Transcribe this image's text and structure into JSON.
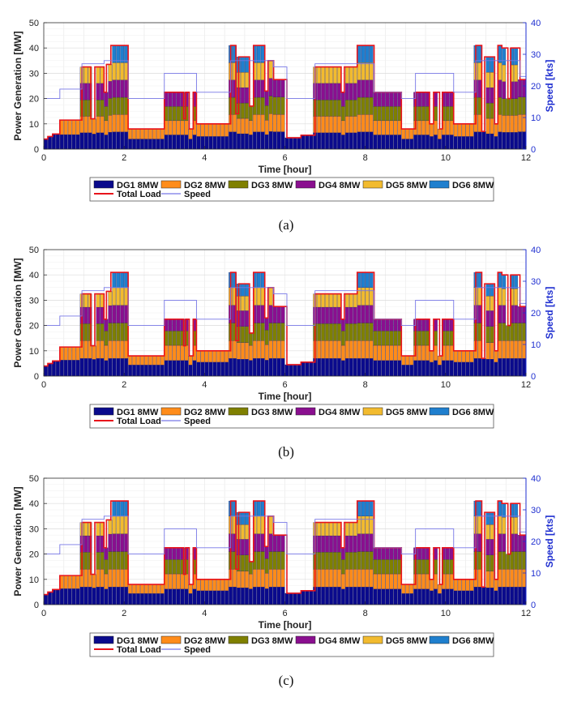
{
  "figure": {
    "panels": [
      {
        "caption": "(a)",
        "variant": "a"
      },
      {
        "caption": "(b)",
        "variant": "b"
      },
      {
        "caption": "(c)",
        "variant": "c"
      }
    ]
  },
  "chart_data": {
    "type": "bar",
    "stacked": true,
    "xlabel": "Time [hour]",
    "ylabel": "Power Generation [MW]",
    "y2label": "Speed [kts]",
    "xlim": [
      0,
      12
    ],
    "ylim": [
      0,
      50
    ],
    "y2lim": [
      0,
      40
    ],
    "xticks": [
      0,
      2,
      4,
      6,
      8,
      10,
      12
    ],
    "yticks": [
      0,
      10,
      20,
      30,
      40,
      50
    ],
    "y2ticks": [
      0,
      10,
      20,
      30,
      40
    ],
    "grid": true,
    "legend_position": "bottom",
    "legend": [
      "DG1 8MW",
      "DG2 8MW",
      "DG3 8MW",
      "DG4 8MW",
      "DG5 8MW",
      "DG6 8MW",
      "Total Load",
      "Speed"
    ],
    "colors": {
      "DG1": "#0a0a8c",
      "DG2": "#ff8c1a",
      "DG3": "#7f8000",
      "DG4": "#8a0f8f",
      "DG5": "#f2bb2f",
      "DG6": "#1f7fce",
      "load": "#e8141b",
      "speed": "#7777e6"
    },
    "load_profile": [
      {
        "t0": 0.0,
        "t1": 0.1,
        "load": 4
      },
      {
        "t0": 0.1,
        "t1": 0.22,
        "load": 5
      },
      {
        "t0": 0.22,
        "t1": 0.4,
        "load": 6
      },
      {
        "t0": 0.4,
        "t1": 0.95,
        "load": 11.5
      },
      {
        "t0": 0.95,
        "t1": 1.17,
        "load": 32.5
      },
      {
        "t0": 1.17,
        "t1": 1.27,
        "load": 12
      },
      {
        "t0": 1.27,
        "t1": 1.5,
        "load": 32.5
      },
      {
        "t0": 1.5,
        "t1": 1.56,
        "load": 22.5
      },
      {
        "t0": 1.56,
        "t1": 1.67,
        "load": 33.5
      },
      {
        "t0": 1.67,
        "t1": 2.1,
        "load": 41
      },
      {
        "t0": 2.1,
        "t1": 3.0,
        "load": 8
      },
      {
        "t0": 3.0,
        "t1": 3.48,
        "load": 22.5
      },
      {
        "t0": 3.48,
        "t1": 3.53,
        "load": 12
      },
      {
        "t0": 3.53,
        "t1": 3.62,
        "load": 22.5
      },
      {
        "t0": 3.62,
        "t1": 3.72,
        "load": 8
      },
      {
        "t0": 3.72,
        "t1": 3.8,
        "load": 22.5
      },
      {
        "t0": 3.8,
        "t1": 4.65,
        "load": 10
      },
      {
        "t0": 4.65,
        "t1": 4.78,
        "load": 41
      },
      {
        "t0": 4.78,
        "t1": 4.85,
        "load": 14
      },
      {
        "t0": 4.85,
        "t1": 5.12,
        "load": 36.5
      },
      {
        "t0": 5.12,
        "t1": 5.22,
        "load": 17
      },
      {
        "t0": 5.22,
        "t1": 5.5,
        "load": 41
      },
      {
        "t0": 5.5,
        "t1": 5.58,
        "load": 23
      },
      {
        "t0": 5.58,
        "t1": 5.72,
        "load": 35
      },
      {
        "t0": 5.72,
        "t1": 6.05,
        "load": 27.5
      },
      {
        "t0": 6.05,
        "t1": 6.4,
        "load": 4.5
      },
      {
        "t0": 6.4,
        "t1": 6.75,
        "load": 5.5
      },
      {
        "t0": 6.75,
        "t1": 7.4,
        "load": 32.5
      },
      {
        "t0": 7.4,
        "t1": 7.48,
        "load": 22.5
      },
      {
        "t0": 7.48,
        "t1": 7.8,
        "load": 32.5
      },
      {
        "t0": 7.8,
        "t1": 8.22,
        "load": 41
      },
      {
        "t0": 8.22,
        "t1": 8.9,
        "load": 22.5
      },
      {
        "t0": 8.9,
        "t1": 9.25,
        "load": 8
      },
      {
        "t0": 9.25,
        "t1": 9.6,
        "load": 22.5
      },
      {
        "t0": 9.6,
        "t1": 9.7,
        "load": 10
      },
      {
        "t0": 9.7,
        "t1": 9.85,
        "load": 22.5
      },
      {
        "t0": 9.85,
        "t1": 9.92,
        "load": 8
      },
      {
        "t0": 9.92,
        "t1": 10.2,
        "load": 22.5
      },
      {
        "t0": 10.2,
        "t1": 10.75,
        "load": 10
      },
      {
        "t0": 10.75,
        "t1": 10.9,
        "load": 41
      },
      {
        "t0": 10.9,
        "t1": 10.97,
        "load": 7
      },
      {
        "t0": 10.97,
        "t1": 11.22,
        "load": 36.5
      },
      {
        "t0": 11.22,
        "t1": 11.3,
        "load": 10
      },
      {
        "t0": 11.3,
        "t1": 11.4,
        "load": 41
      },
      {
        "t0": 11.4,
        "t1": 11.55,
        "load": 40
      },
      {
        "t0": 11.55,
        "t1": 11.62,
        "load": 20
      },
      {
        "t0": 11.62,
        "t1": 11.85,
        "load": 40
      },
      {
        "t0": 11.85,
        "t1": 12.0,
        "load": 27.5
      }
    ],
    "speed_profile": [
      {
        "t0": 0.0,
        "t1": 0.4,
        "speed": 16
      },
      {
        "t0": 0.4,
        "t1": 0.95,
        "speed": 19
      },
      {
        "t0": 0.95,
        "t1": 1.5,
        "speed": 27
      },
      {
        "t0": 1.5,
        "t1": 2.1,
        "speed": 28
      },
      {
        "t0": 2.1,
        "t1": 3.0,
        "speed": 16
      },
      {
        "t0": 3.0,
        "t1": 3.8,
        "speed": 24
      },
      {
        "t0": 3.8,
        "t1": 4.65,
        "speed": 18
      },
      {
        "t0": 4.65,
        "t1": 5.72,
        "speed": 28
      },
      {
        "t0": 5.72,
        "t1": 6.05,
        "speed": 26
      },
      {
        "t0": 6.05,
        "t1": 6.75,
        "speed": 16
      },
      {
        "t0": 6.75,
        "t1": 8.22,
        "speed": 27
      },
      {
        "t0": 8.22,
        "t1": 8.9,
        "speed": 18
      },
      {
        "t0": 8.9,
        "t1": 9.25,
        "speed": 16
      },
      {
        "t0": 9.25,
        "t1": 10.2,
        "speed": 24
      },
      {
        "t0": 10.2,
        "t1": 10.75,
        "speed": 18
      },
      {
        "t0": 10.75,
        "t1": 11.85,
        "speed": 28
      },
      {
        "t0": 11.85,
        "t1": 12.0,
        "speed": 23
      }
    ]
  }
}
